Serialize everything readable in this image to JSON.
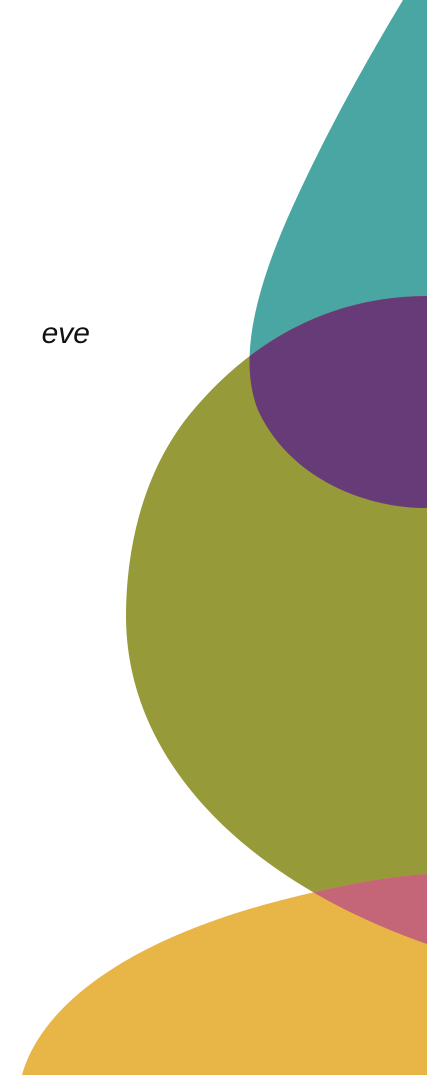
{
  "text": {
    "fragment": "eve"
  },
  "colors": {
    "background": "#ffffff",
    "teal": "#4aa6a3",
    "purple": "#673a78",
    "olive": "#969a38",
    "gold": "#e8b547",
    "pink": "#c46578",
    "text": "#111111"
  }
}
